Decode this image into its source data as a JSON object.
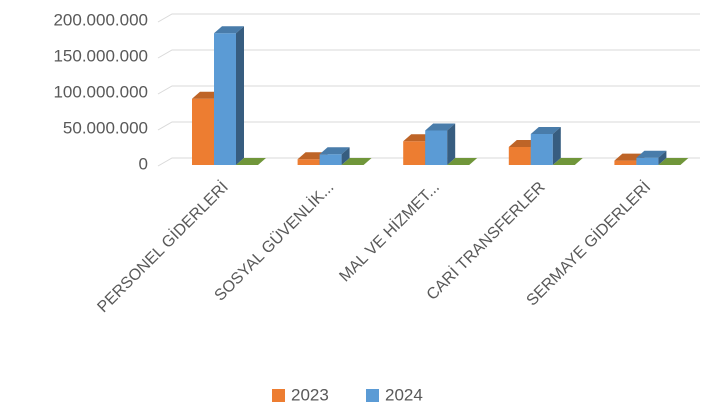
{
  "chart_data": {
    "type": "bar3d",
    "categories": [
      "PERSONEL GİDERLERİ",
      "SOSYAL GÜVENLİK...",
      "MAL VE HİZMET...",
      "CARİ TRANSFERLER",
      "SERMAYE GİDERLERİ"
    ],
    "series": [
      {
        "name": "2023",
        "color": "#ED7D31",
        "values": [
          92000000,
          8000000,
          33000000,
          25000000,
          6000000
        ]
      },
      {
        "name": "2024",
        "color": "#5B9BD5",
        "values": [
          183000000,
          15000000,
          48000000,
          43000000,
          10000000
        ]
      }
    ],
    "ylim": [
      0,
      200000000
    ],
    "yticks": [
      {
        "value": 0,
        "label": "0"
      },
      {
        "value": 50000000,
        "label": "50.000.000"
      },
      {
        "value": 100000000,
        "label": "100.000.000"
      },
      {
        "value": 150000000,
        "label": "150.000.000"
      },
      {
        "value": 200000000,
        "label": "200.000.000"
      }
    ],
    "grid": true
  }
}
